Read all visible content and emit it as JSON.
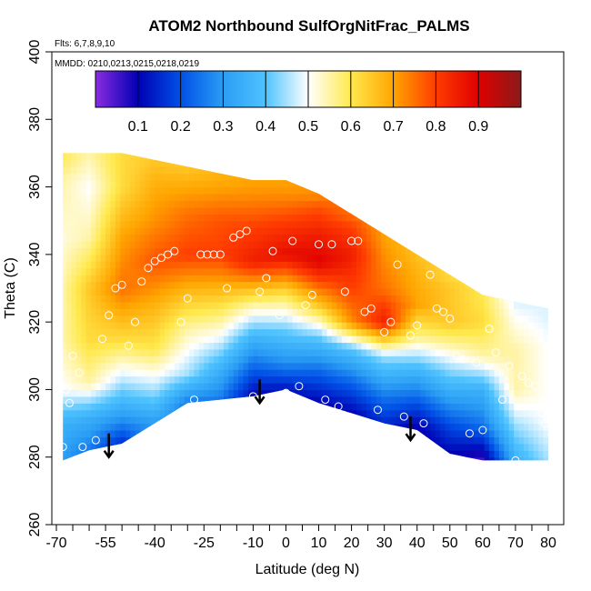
{
  "chart_data": {
    "type": "heatmap",
    "title": "ATOM2 Northbound SulfOrgNitFrac_PALMS",
    "subtitle_flights": "Flts: 6,7,8,9,10",
    "subtitle_dates": "MMDD: 0210,0213,0215,0218,0219",
    "xlabel": "Latitude (deg N)",
    "ylabel": "Theta (C)",
    "xlim": [
      -70,
      85
    ],
    "ylim": [
      260,
      400
    ],
    "x_tick_labels": [
      "-70",
      "-55",
      "-40",
      "-25",
      "-10",
      "0",
      "10",
      "20",
      "30",
      "40",
      "50",
      "60",
      "70",
      "80"
    ],
    "x_ticks": [
      -70,
      -55,
      -40,
      -25,
      -10,
      0,
      10,
      20,
      30,
      40,
      50,
      60,
      70,
      80
    ],
    "x_minor_ticks": [
      -65,
      -60,
      -50,
      -45,
      -35,
      -30,
      -20,
      -15,
      -5,
      5,
      15,
      25,
      35,
      45,
      55,
      65,
      75
    ],
    "y_tick_labels": [
      "260",
      "280",
      "300",
      "320",
      "340",
      "360",
      "380",
      "400"
    ],
    "y_ticks": [
      260,
      280,
      300,
      320,
      340,
      360,
      380,
      400
    ],
    "colorbar": {
      "range": [
        0.0,
        1.0
      ],
      "tick_labels": [
        "0.1",
        "0.2",
        "0.3",
        "0.4",
        "0.5",
        "0.6",
        "0.7",
        "0.8",
        "0.9"
      ],
      "ticks": [
        0.1,
        0.2,
        0.3,
        0.4,
        0.5,
        0.6,
        0.7,
        0.8,
        0.9
      ],
      "colors": [
        "#8a2be2",
        "#0000b4",
        "#0050e6",
        "#2a9df4",
        "#4fc3ff",
        "#ffffff",
        "#ffe94d",
        "#ffa500",
        "#ff3c00",
        "#e00000",
        "#8b1a1a"
      ]
    },
    "field_nodes": [
      {
        "lat": -68,
        "profile": [
          [
            279,
            0.3
          ],
          [
            290,
            0.35
          ],
          [
            300,
            0.5
          ],
          [
            315,
            0.55
          ],
          [
            330,
            0.55
          ],
          [
            345,
            0.52
          ],
          [
            362,
            0.55
          ],
          [
            370,
            0.6
          ]
        ]
      },
      {
        "lat": -60,
        "profile": [
          [
            282,
            0.25
          ],
          [
            292,
            0.35
          ],
          [
            302,
            0.55
          ],
          [
            315,
            0.62
          ],
          [
            330,
            0.65
          ],
          [
            345,
            0.55
          ],
          [
            360,
            0.5
          ],
          [
            370,
            0.55
          ]
        ]
      },
      {
        "lat": -50,
        "profile": [
          [
            284,
            0.15
          ],
          [
            292,
            0.3
          ],
          [
            302,
            0.45
          ],
          [
            315,
            0.62
          ],
          [
            330,
            0.75
          ],
          [
            345,
            0.7
          ],
          [
            360,
            0.62
          ],
          [
            370,
            0.62
          ]
        ]
      },
      {
        "lat": -40,
        "profile": [
          [
            290,
            0.3
          ],
          [
            300,
            0.45
          ],
          [
            312,
            0.6
          ],
          [
            325,
            0.68
          ],
          [
            338,
            0.78
          ],
          [
            350,
            0.72
          ],
          [
            362,
            0.68
          ],
          [
            368,
            0.65
          ]
        ]
      },
      {
        "lat": -30,
        "profile": [
          [
            296,
            0.25
          ],
          [
            305,
            0.45
          ],
          [
            318,
            0.55
          ],
          [
            330,
            0.68
          ],
          [
            340,
            0.8
          ],
          [
            352,
            0.75
          ],
          [
            362,
            0.68
          ],
          [
            366,
            0.65
          ]
        ]
      },
      {
        "lat": -20,
        "profile": [
          [
            297,
            0.25
          ],
          [
            306,
            0.35
          ],
          [
            316,
            0.5
          ],
          [
            328,
            0.65
          ],
          [
            340,
            0.8
          ],
          [
            350,
            0.78
          ],
          [
            360,
            0.7
          ],
          [
            364,
            0.68
          ]
        ]
      },
      {
        "lat": -10,
        "profile": [
          [
            298,
            0.1
          ],
          [
            305,
            0.2
          ],
          [
            315,
            0.35
          ],
          [
            325,
            0.55
          ],
          [
            338,
            0.85
          ],
          [
            348,
            0.8
          ],
          [
            358,
            0.72
          ],
          [
            362,
            0.7
          ]
        ]
      },
      {
        "lat": 0,
        "profile": [
          [
            300,
            0.12
          ],
          [
            308,
            0.28
          ],
          [
            318,
            0.42
          ],
          [
            328,
            0.6
          ],
          [
            340,
            0.88
          ],
          [
            350,
            0.8
          ],
          [
            358,
            0.72
          ],
          [
            362,
            0.7
          ]
        ]
      },
      {
        "lat": 10,
        "profile": [
          [
            296,
            0.1
          ],
          [
            305,
            0.22
          ],
          [
            315,
            0.4
          ],
          [
            325,
            0.65
          ],
          [
            338,
            0.9
          ],
          [
            346,
            0.85
          ],
          [
            354,
            0.78
          ],
          [
            358,
            0.72
          ]
        ]
      },
      {
        "lat": 20,
        "profile": [
          [
            293,
            0.1
          ],
          [
            302,
            0.22
          ],
          [
            312,
            0.4
          ],
          [
            320,
            0.72
          ],
          [
            330,
            0.8
          ],
          [
            340,
            0.85
          ],
          [
            348,
            0.8
          ],
          [
            352,
            0.75
          ]
        ]
      },
      {
        "lat": 30,
        "profile": [
          [
            290,
            0.15
          ],
          [
            298,
            0.25
          ],
          [
            310,
            0.45
          ],
          [
            320,
            0.85
          ],
          [
            330,
            0.75
          ],
          [
            340,
            0.72
          ],
          [
            346,
            0.7
          ]
        ]
      },
      {
        "lat": 40,
        "profile": [
          [
            288,
            0.08
          ],
          [
            296,
            0.2
          ],
          [
            305,
            0.35
          ],
          [
            315,
            0.55
          ],
          [
            325,
            0.7
          ],
          [
            335,
            0.68
          ],
          [
            340,
            0.66
          ]
        ]
      },
      {
        "lat": 50,
        "profile": [
          [
            281,
            0.1
          ],
          [
            290,
            0.2
          ],
          [
            300,
            0.35
          ],
          [
            310,
            0.5
          ],
          [
            320,
            0.65
          ],
          [
            330,
            0.65
          ],
          [
            334,
            0.62
          ]
        ]
      },
      {
        "lat": 60,
        "profile": [
          [
            279,
            0.05
          ],
          [
            290,
            0.25
          ],
          [
            300,
            0.35
          ],
          [
            310,
            0.55
          ],
          [
            320,
            0.62
          ],
          [
            328,
            0.6
          ]
        ]
      },
      {
        "lat": 70,
        "profile": [
          [
            279,
            0.35
          ],
          [
            290,
            0.45
          ],
          [
            300,
            0.55
          ],
          [
            312,
            0.55
          ],
          [
            322,
            0.5
          ],
          [
            326,
            0.48
          ]
        ]
      },
      {
        "lat": 80,
        "profile": [
          [
            279,
            0.45
          ],
          [
            290,
            0.5
          ],
          [
            300,
            0.5
          ],
          [
            312,
            0.5
          ],
          [
            322,
            0.48
          ],
          [
            324,
            0.48
          ]
        ]
      }
    ],
    "samples": [
      [
        -68,
        283
      ],
      [
        -67,
        300
      ],
      [
        -66,
        296
      ],
      [
        -65,
        310
      ],
      [
        -63,
        305
      ],
      [
        -62,
        283
      ],
      [
        -58,
        285
      ],
      [
        -56,
        315
      ],
      [
        -54,
        322
      ],
      [
        -52,
        330
      ],
      [
        -50,
        331
      ],
      [
        -48,
        313
      ],
      [
        -46,
        320
      ],
      [
        -44,
        332
      ],
      [
        -42,
        336
      ],
      [
        -40,
        338
      ],
      [
        -38,
        339
      ],
      [
        -36,
        340
      ],
      [
        -34,
        341
      ],
      [
        -32,
        320
      ],
      [
        -30,
        327
      ],
      [
        -28,
        297
      ],
      [
        -26,
        340
      ],
      [
        -24,
        340
      ],
      [
        -22,
        340
      ],
      [
        -20,
        340
      ],
      [
        -18,
        330
      ],
      [
        -16,
        345
      ],
      [
        -14,
        346
      ],
      [
        -12,
        347
      ],
      [
        -10,
        298
      ],
      [
        -8,
        329
      ],
      [
        -6,
        333
      ],
      [
        -4,
        341
      ],
      [
        -2,
        322
      ],
      [
        0,
        299
      ],
      [
        2,
        344
      ],
      [
        4,
        301
      ],
      [
        6,
        325
      ],
      [
        8,
        328
      ],
      [
        10,
        343
      ],
      [
        12,
        297
      ],
      [
        14,
        343
      ],
      [
        16,
        295
      ],
      [
        18,
        329
      ],
      [
        20,
        344
      ],
      [
        22,
        344
      ],
      [
        24,
        323
      ],
      [
        26,
        324
      ],
      [
        28,
        294
      ],
      [
        30,
        317
      ],
      [
        32,
        320
      ],
      [
        34,
        337
      ],
      [
        36,
        292
      ],
      [
        38,
        316
      ],
      [
        40,
        319
      ],
      [
        42,
        290
      ],
      [
        44,
        334
      ],
      [
        46,
        324
      ],
      [
        48,
        323
      ],
      [
        50,
        321
      ],
      [
        52,
        310
      ],
      [
        54,
        309
      ],
      [
        56,
        287
      ],
      [
        58,
        308
      ],
      [
        60,
        288
      ],
      [
        62,
        318
      ],
      [
        64,
        311
      ],
      [
        66,
        297
      ],
      [
        68,
        307
      ],
      [
        70,
        279
      ],
      [
        72,
        304
      ],
      [
        74,
        302
      ],
      [
        76,
        301
      ],
      [
        78,
        293
      ],
      [
        79,
        290
      ],
      [
        80,
        292
      ],
      [
        82,
        299
      ]
    ],
    "arrows": [
      [
        -54,
        287
      ],
      [
        -8,
        303
      ],
      [
        38,
        292
      ]
    ]
  }
}
